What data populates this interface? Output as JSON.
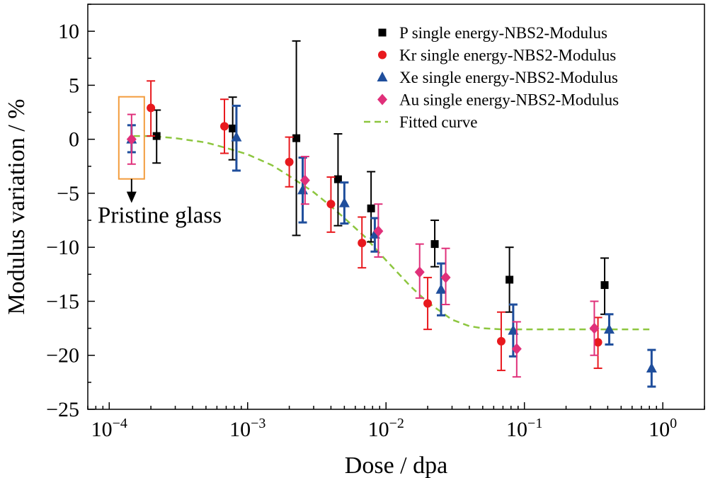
{
  "chart_data": {
    "type": "scatter",
    "xlabel": "Dose / dpa",
    "ylabel": "Modulus variation / %",
    "xscale": "log",
    "xlim": [
      7e-05,
      2.0
    ],
    "ylim": [
      -25,
      12.5
    ],
    "xticks": [
      {
        "value": 0.0001,
        "base": "10",
        "exp": "−4"
      },
      {
        "value": 0.001,
        "base": "10",
        "exp": "−3"
      },
      {
        "value": 0.01,
        "base": "10",
        "exp": "−2"
      },
      {
        "value": 0.1,
        "base": "10",
        "exp": "−1"
      },
      {
        "value": 1,
        "base": "10",
        "exp": "0"
      }
    ],
    "yticks": [
      {
        "value": 10,
        "label": "10"
      },
      {
        "value": 5,
        "label": "5"
      },
      {
        "value": 0,
        "label": "0"
      },
      {
        "value": -5,
        "label": "−5"
      },
      {
        "value": -10,
        "label": "−10"
      },
      {
        "value": -15,
        "label": "−15"
      },
      {
        "value": -20,
        "label": "−20"
      },
      {
        "value": -25,
        "label": "−25"
      }
    ],
    "grid": false,
    "legend_position": "top-right",
    "series": [
      {
        "name": "P single energy-NBS2-Modulus",
        "marker": "square",
        "color": "#000000",
        "points": [
          {
            "x": 0.00022,
            "y": 0.3,
            "lo": -2.2,
            "hi": 2.7
          },
          {
            "x": 0.00078,
            "y": 1.0,
            "lo": -1.9,
            "hi": 3.9
          },
          {
            "x": 0.00225,
            "y": 0.1,
            "lo": -8.9,
            "hi": 9.1
          },
          {
            "x": 0.0045,
            "y": -3.7,
            "lo": -8.0,
            "hi": 0.5
          },
          {
            "x": 0.0078,
            "y": -6.4,
            "lo": -9.5,
            "hi": -3.0
          },
          {
            "x": 0.0225,
            "y": -9.7,
            "lo": -11.8,
            "hi": -7.5
          },
          {
            "x": 0.078,
            "y": -13.0,
            "lo": -16.0,
            "hi": -10.0
          },
          {
            "x": 0.38,
            "y": -13.5,
            "lo": -16.2,
            "hi": -11.0
          }
        ]
      },
      {
        "name": "Kr single energy-NBS2-Modulus",
        "marker": "circle",
        "color": "#e8191e",
        "points": [
          {
            "x": 0.0002,
            "y": 2.9,
            "lo": 0.3,
            "hi": 5.4
          },
          {
            "x": 0.00068,
            "y": 1.2,
            "lo": -1.3,
            "hi": 3.7
          },
          {
            "x": 0.002,
            "y": -2.1,
            "lo": -4.4,
            "hi": 0.2
          },
          {
            "x": 0.004,
            "y": -6.0,
            "lo": -8.6,
            "hi": -3.5
          },
          {
            "x": 0.0067,
            "y": -9.6,
            "lo": -11.9,
            "hi": -7.2
          },
          {
            "x": 0.02,
            "y": -15.2,
            "lo": -17.6,
            "hi": -12.8
          },
          {
            "x": 0.068,
            "y": -18.7,
            "lo": -21.4,
            "hi": -16.0
          },
          {
            "x": 0.34,
            "y": -18.8,
            "lo": -21.2,
            "hi": -16.5
          }
        ]
      },
      {
        "name": "Xe single energy-NBS2-Modulus",
        "marker": "triangle",
        "color": "#1f4e9c",
        "points": [
          {
            "x": 0.000145,
            "y": 0.0,
            "lo": -1.2,
            "hi": 1.3
          },
          {
            "x": 0.00083,
            "y": 0.2,
            "lo": -2.9,
            "hi": 3.1
          },
          {
            "x": 0.0025,
            "y": -4.7,
            "lo": -7.7,
            "hi": -1.7
          },
          {
            "x": 0.005,
            "y": -5.9,
            "lo": -7.8,
            "hi": -4.0
          },
          {
            "x": 0.0083,
            "y": -8.8,
            "lo": -10.4,
            "hi": -7.3
          },
          {
            "x": 0.025,
            "y": -13.9,
            "lo": -16.3,
            "hi": -11.5
          },
          {
            "x": 0.083,
            "y": -17.7,
            "lo": -20.1,
            "hi": -15.3
          },
          {
            "x": 0.41,
            "y": -17.6,
            "lo": -19.0,
            "hi": -16.2
          },
          {
            "x": 0.83,
            "y": -21.2,
            "lo": -22.9,
            "hi": -19.5
          }
        ]
      },
      {
        "name": "Au single energy-NBS2-Modulus",
        "marker": "diamond",
        "color": "#e0307a",
        "points": [
          {
            "x": 0.000145,
            "y": 0.0,
            "lo": -2.3,
            "hi": 2.3
          },
          {
            "x": 0.0026,
            "y": -3.8,
            "lo": -6.0,
            "hi": -1.6
          },
          {
            "x": 0.0088,
            "y": -8.5,
            "lo": -10.9,
            "hi": -6.0
          },
          {
            "x": 0.0175,
            "y": -12.3,
            "lo": -14.7,
            "hi": -9.7
          },
          {
            "x": 0.027,
            "y": -12.8,
            "lo": -15.3,
            "hi": -10.1
          },
          {
            "x": 0.088,
            "y": -19.4,
            "lo": -22.0,
            "hi": -16.9
          },
          {
            "x": 0.32,
            "y": -17.5,
            "lo": -20.0,
            "hi": -15.0
          }
        ]
      },
      {
        "name": "Fitted curve",
        "type": "line",
        "style": "dashed",
        "color": "#8dc63f",
        "x": [
          0.00015,
          0.0002,
          0.0003,
          0.0005,
          0.0007,
          0.001,
          0.0015,
          0.002,
          0.003,
          0.004,
          0.005,
          0.007,
          0.01,
          0.015,
          0.02,
          0.03,
          0.04,
          0.05,
          0.07,
          0.1,
          0.2,
          0.4,
          0.8
        ],
        "y": [
          0.3,
          0.3,
          0.1,
          -0.3,
          -0.8,
          -1.4,
          -2.4,
          -3.4,
          -4.9,
          -6.2,
          -7.3,
          -9.0,
          -11.2,
          -13.6,
          -15.1,
          -16.7,
          -17.3,
          -17.5,
          -17.6,
          -17.6,
          -17.6,
          -17.6,
          -17.6
        ]
      }
    ],
    "annotation": {
      "text": "Pristine glass",
      "box_color": "#f39c3d",
      "target_x": 0.000145,
      "target_y": 0
    }
  }
}
